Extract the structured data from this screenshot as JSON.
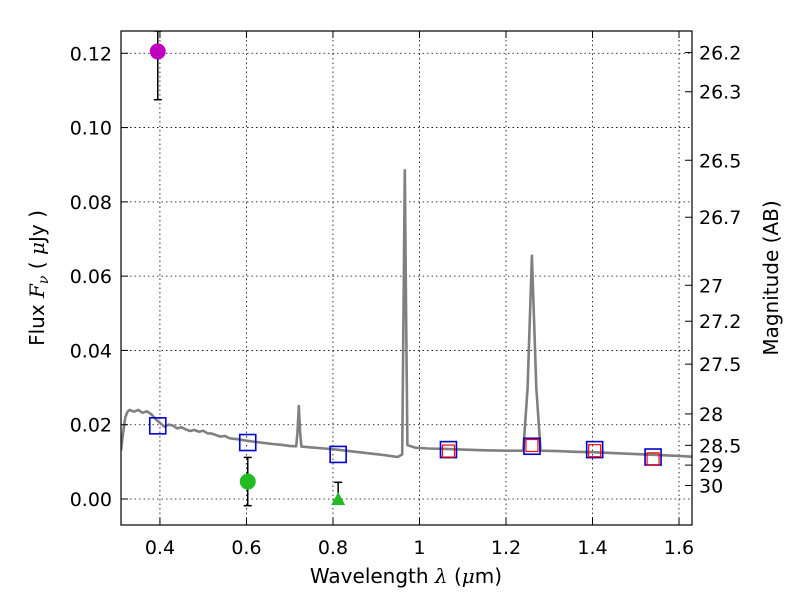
{
  "chart_data": {
    "type": "scatter",
    "xlabel_prefix": "Wavelength  ",
    "xlabel_symbol": "λ",
    "xlabel_unit_open": " (",
    "xlabel_unit_mu": "μ",
    "xlabel_unit_close": "m)",
    "ylabel_prefix": "Flux  ",
    "ylabel_symbol": "F",
    "ylabel_subscript": "ν",
    "ylabel_unit_open": "  ( ",
    "ylabel_unit_mu": "μ",
    "ylabel_unit_close": "Jy )",
    "y2label": "Magnitude (AB)",
    "xlim": [
      0.31,
      1.63
    ],
    "ylim": [
      -0.007,
      0.126
    ],
    "grid": true,
    "x_ticks": [
      0.4,
      0.6,
      0.8,
      1.0,
      1.2,
      1.4,
      1.6
    ],
    "x_tick_labels": [
      "0.4",
      "0.6",
      "0.8",
      "1",
      "1.2",
      "1.4",
      "1.6"
    ],
    "y_ticks": [
      0.0,
      0.02,
      0.04,
      0.06,
      0.08,
      0.1,
      0.12
    ],
    "y_tick_labels": [
      "0.00",
      "0.02",
      "0.04",
      "0.06",
      "0.08",
      "0.10",
      "0.12"
    ],
    "mag_ticks": [
      26.2,
      26.3,
      26.5,
      26.7,
      27,
      27.2,
      27.5,
      28,
      28.5,
      29,
      30
    ],
    "mag_tick_labels": [
      "26.2",
      "26.3",
      "26.5",
      "26.7",
      "27",
      "27.2",
      "27.5",
      "28",
      "28.5",
      "29",
      "30"
    ],
    "colors": {
      "sed": "#808080",
      "model_box": "#0000cc",
      "obs_box": "#ff0000",
      "magenta": "#bf00bf",
      "green": "#22bb22",
      "errorbar": "#000000"
    },
    "sed_template": {
      "name": "model SED",
      "points": [
        [
          0.31,
          0.013
        ],
        [
          0.315,
          0.018
        ],
        [
          0.32,
          0.022
        ],
        [
          0.325,
          0.0235
        ],
        [
          0.33,
          0.024
        ],
        [
          0.34,
          0.0235
        ],
        [
          0.35,
          0.024
        ],
        [
          0.36,
          0.0232
        ],
        [
          0.37,
          0.0236
        ],
        [
          0.38,
          0.0228
        ],
        [
          0.39,
          0.0215
        ],
        [
          0.4,
          0.0205
        ],
        [
          0.41,
          0.0195
        ],
        [
          0.42,
          0.02
        ],
        [
          0.43,
          0.0198
        ],
        [
          0.44,
          0.019
        ],
        [
          0.45,
          0.0193
        ],
        [
          0.46,
          0.0187
        ],
        [
          0.47,
          0.0183
        ],
        [
          0.48,
          0.0186
        ],
        [
          0.49,
          0.0181
        ],
        [
          0.5,
          0.0184
        ],
        [
          0.51,
          0.0177
        ],
        [
          0.52,
          0.0176
        ],
        [
          0.53,
          0.0172
        ],
        [
          0.54,
          0.0168
        ],
        [
          0.55,
          0.017
        ],
        [
          0.56,
          0.0164
        ],
        [
          0.57,
          0.0162
        ],
        [
          0.58,
          0.0161
        ],
        [
          0.6,
          0.0157
        ],
        [
          0.62,
          0.0154
        ],
        [
          0.64,
          0.0151
        ],
        [
          0.66,
          0.0148
        ],
        [
          0.68,
          0.0146
        ],
        [
          0.7,
          0.0143
        ],
        [
          0.715,
          0.0142
        ],
        [
          0.718,
          0.018
        ],
        [
          0.721,
          0.025
        ],
        [
          0.724,
          0.018
        ],
        [
          0.727,
          0.0141
        ],
        [
          0.75,
          0.0139
        ],
        [
          0.78,
          0.0136
        ],
        [
          0.8,
          0.0134
        ],
        [
          0.83,
          0.013
        ],
        [
          0.86,
          0.0126
        ],
        [
          0.89,
          0.0122
        ],
        [
          0.92,
          0.0118
        ],
        [
          0.95,
          0.0113
        ],
        [
          0.96,
          0.012
        ],
        [
          0.963,
          0.05
        ],
        [
          0.966,
          0.0885
        ],
        [
          0.969,
          0.05
        ],
        [
          0.972,
          0.0145
        ],
        [
          0.99,
          0.0138
        ],
        [
          1.02,
          0.0136
        ],
        [
          1.06,
          0.0135
        ],
        [
          1.1,
          0.0133
        ],
        [
          1.15,
          0.0131
        ],
        [
          1.2,
          0.013
        ],
        [
          1.24,
          0.013
        ],
        [
          1.25,
          0.03
        ],
        [
          1.26,
          0.0655
        ],
        [
          1.27,
          0.03
        ],
        [
          1.28,
          0.013
        ],
        [
          1.32,
          0.0129
        ],
        [
          1.36,
          0.0127
        ],
        [
          1.4,
          0.0126
        ],
        [
          1.44,
          0.0124
        ],
        [
          1.48,
          0.0122
        ],
        [
          1.52,
          0.012
        ],
        [
          1.56,
          0.0118
        ],
        [
          1.6,
          0.0116
        ],
        [
          1.63,
          0.0114
        ]
      ]
    },
    "series": [
      {
        "name": "model photometry",
        "marker": "square-open",
        "points": [
          [
            0.395,
            0.0197
          ],
          [
            0.603,
            0.0152
          ],
          [
            0.812,
            0.012
          ],
          [
            1.067,
            0.0133
          ],
          [
            1.26,
            0.0142
          ],
          [
            1.405,
            0.0133
          ],
          [
            1.54,
            0.0113
          ]
        ]
      },
      {
        "name": "observed photometry",
        "marker": "square-open-small",
        "points": [
          [
            1.067,
            0.0129
          ],
          [
            1.26,
            0.0144
          ],
          [
            1.405,
            0.013
          ],
          [
            1.54,
            0.0108
          ]
        ]
      },
      {
        "name": "magenta detection",
        "marker": "circle",
        "points": [
          [
            0.395,
            0.1205
          ]
        ],
        "error_low": [
          0.1075
        ],
        "error_high": [
          0.126
        ]
      },
      {
        "name": "green detection",
        "marker": "circle",
        "points": [
          [
            0.603,
            0.0047
          ]
        ],
        "error_low": [
          -0.0018
        ],
        "error_high": [
          0.0112
        ]
      },
      {
        "name": "green upper limit",
        "marker": "triangle",
        "points": [
          [
            0.812,
            0.0
          ]
        ],
        "error_low": [
          -0.0005
        ],
        "error_high": [
          0.0045
        ]
      }
    ]
  }
}
